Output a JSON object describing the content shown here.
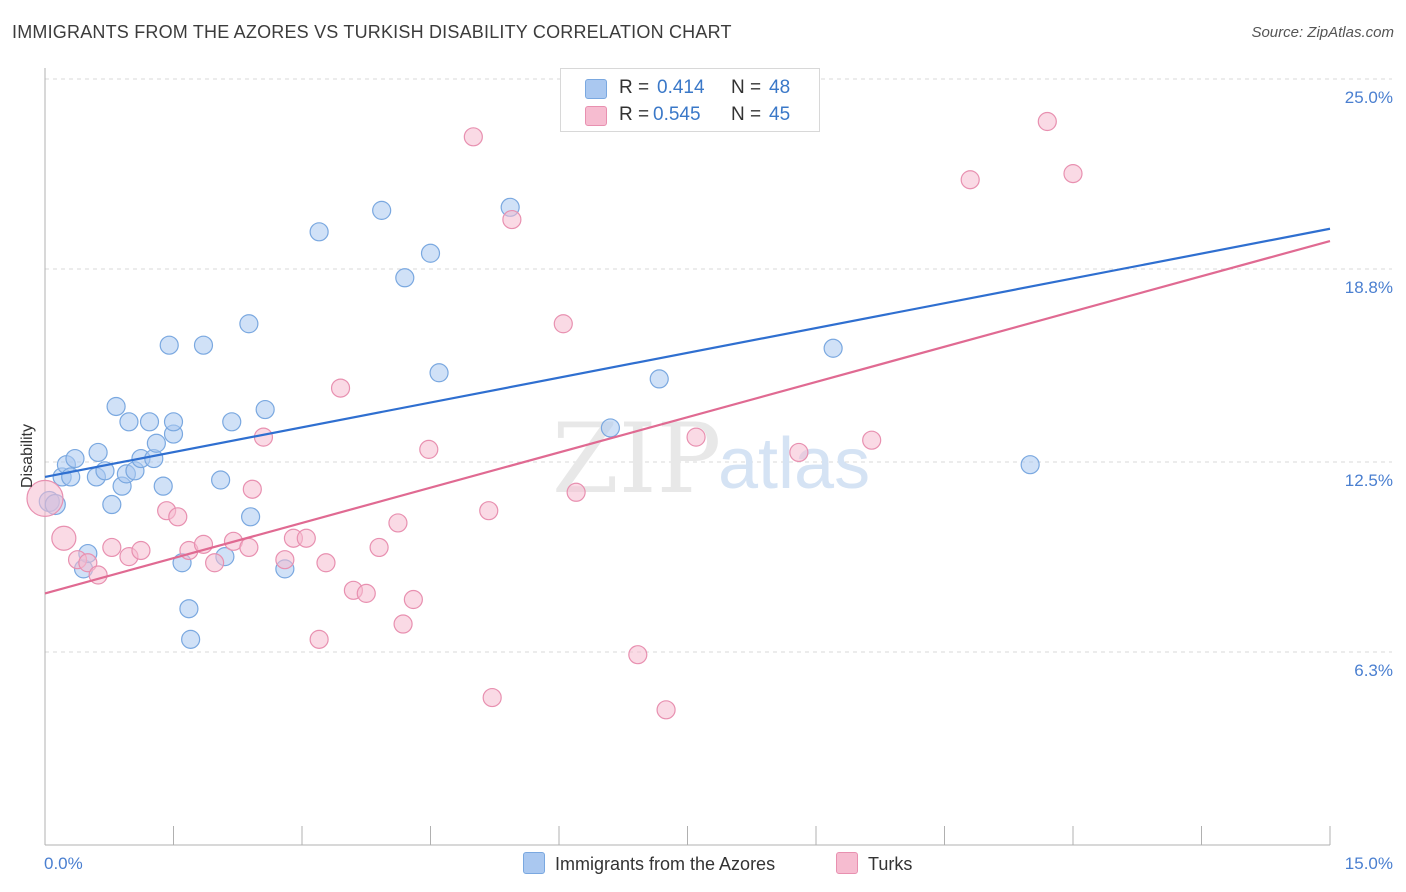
{
  "header": {
    "title": "IMMIGRANTS FROM THE AZORES VS TURKISH DISABILITY CORRELATION CHART",
    "source": "Source: ZipAtlas.com"
  },
  "watermark": {
    "zip": "ZIP",
    "atlas": "atlas"
  },
  "legend": {
    "rows": [
      {
        "r_label": "R =",
        "r_value": "0.414",
        "n_label": "N =",
        "n_value": "48",
        "color": "#aac8f0",
        "border": "#7aa8e0"
      },
      {
        "r_label": "R =",
        "r_value": "0.545",
        "n_label": "N =",
        "n_value": "45",
        "color": "#f6bcd0",
        "border": "#e890b0"
      }
    ]
  },
  "bottom_legend": {
    "series1": "Immigrants from the Azores",
    "series2": "Turks"
  },
  "colors": {
    "blue_fill": "#aac8f0",
    "blue_stroke": "#7aa8e0",
    "blue_line": "#2f6fd0",
    "pink_fill": "#f6bcd0",
    "pink_stroke": "#e890b0",
    "pink_line": "#e06a92",
    "tick_label": "#4a7fd0",
    "grid": "#d8d8d8"
  },
  "chart_data": {
    "type": "scatter",
    "title": "IMMIGRANTS FROM THE AZORES VS TURKISH DISABILITY CORRELATION CHART",
    "xlabel": "",
    "ylabel": "Disability",
    "xlim": [
      0,
      15
    ],
    "ylim": [
      0,
      26
    ],
    "x_tick_labels": [
      "0.0%",
      "15.0%"
    ],
    "y_ticks": [
      6.3,
      12.5,
      18.8,
      25.0
    ],
    "y_tick_labels": [
      "6.3%",
      "12.5%",
      "18.8%",
      "25.0%"
    ],
    "grid": "horizontal dashed",
    "legend_position": "top-center",
    "series": [
      {
        "name": "Immigrants from the Azores",
        "trend": {
          "x0": 0,
          "y0": 12.6,
          "x1": 15,
          "y1": 20.7
        },
        "points": [
          [
            0.05,
            11.8,
            10
          ],
          [
            0.12,
            11.7,
            10
          ],
          [
            0.2,
            12.6,
            9
          ],
          [
            0.25,
            13.0,
            9
          ],
          [
            0.3,
            12.6,
            9
          ],
          [
            0.35,
            13.2,
            9
          ],
          [
            0.45,
            9.6,
            9
          ],
          [
            0.5,
            10.1,
            9
          ],
          [
            0.6,
            12.6,
            9
          ],
          [
            0.62,
            13.4,
            9
          ],
          [
            0.7,
            12.8,
            9
          ],
          [
            0.78,
            11.7,
            9
          ],
          [
            0.83,
            14.9,
            9
          ],
          [
            0.9,
            12.3,
            9
          ],
          [
            0.95,
            12.7,
            9
          ],
          [
            0.98,
            14.4,
            9
          ],
          [
            1.05,
            12.8,
            9
          ],
          [
            1.12,
            13.2,
            9
          ],
          [
            1.22,
            14.4,
            9
          ],
          [
            1.27,
            13.2,
            9
          ],
          [
            1.3,
            13.7,
            9
          ],
          [
            1.38,
            12.3,
            9
          ],
          [
            1.45,
            16.9,
            9
          ],
          [
            1.5,
            14.0,
            9
          ],
          [
            1.5,
            14.4,
            9
          ],
          [
            1.6,
            9.8,
            9
          ],
          [
            1.68,
            8.3,
            9
          ],
          [
            1.7,
            7.3,
            9
          ],
          [
            1.85,
            16.9,
            9
          ],
          [
            2.05,
            12.5,
            9
          ],
          [
            2.1,
            10.0,
            9
          ],
          [
            2.18,
            14.4,
            9
          ],
          [
            2.38,
            17.6,
            9
          ],
          [
            2.4,
            11.3,
            9
          ],
          [
            2.57,
            14.8,
            9
          ],
          [
            2.8,
            9.6,
            9
          ],
          [
            3.2,
            20.6,
            9
          ],
          [
            3.93,
            21.3,
            9
          ],
          [
            4.2,
            19.1,
            9
          ],
          [
            4.5,
            19.9,
            9
          ],
          [
            4.6,
            16.0,
            9
          ],
          [
            5.43,
            21.4,
            9
          ],
          [
            7.17,
            15.8,
            9
          ],
          [
            6.6,
            14.2,
            9
          ],
          [
            9.2,
            16.8,
            9
          ],
          [
            11.5,
            13.0,
            9
          ]
        ]
      },
      {
        "name": "Turks",
        "trend": {
          "x0": 0,
          "y0": 8.8,
          "x1": 15,
          "y1": 20.3
        },
        "points": [
          [
            0.0,
            11.9,
            18
          ],
          [
            0.22,
            10.6,
            12
          ],
          [
            0.38,
            9.9,
            9
          ],
          [
            0.5,
            9.8,
            9
          ],
          [
            0.62,
            9.4,
            9
          ],
          [
            0.78,
            10.3,
            9
          ],
          [
            0.98,
            10.0,
            9
          ],
          [
            1.12,
            10.2,
            9
          ],
          [
            1.42,
            11.5,
            9
          ],
          [
            1.55,
            11.3,
            9
          ],
          [
            1.68,
            10.2,
            9
          ],
          [
            1.85,
            10.4,
            9
          ],
          [
            1.98,
            9.8,
            9
          ],
          [
            2.2,
            10.5,
            9
          ],
          [
            2.38,
            10.3,
            9
          ],
          [
            2.42,
            12.2,
            9
          ],
          [
            2.55,
            13.9,
            9
          ],
          [
            2.8,
            9.9,
            9
          ],
          [
            2.9,
            10.6,
            9
          ],
          [
            3.05,
            10.6,
            9
          ],
          [
            3.2,
            7.3,
            9
          ],
          [
            3.28,
            9.8,
            9
          ],
          [
            3.45,
            15.5,
            9
          ],
          [
            3.6,
            8.9,
            9
          ],
          [
            3.75,
            8.8,
            9
          ],
          [
            3.9,
            10.3,
            9
          ],
          [
            4.12,
            11.1,
            9
          ],
          [
            4.18,
            7.8,
            9
          ],
          [
            4.3,
            8.6,
            9
          ],
          [
            4.48,
            13.5,
            9
          ],
          [
            5.0,
            23.7,
            9
          ],
          [
            5.18,
            11.5,
            9
          ],
          [
            5.22,
            5.4,
            9
          ],
          [
            5.45,
            21.0,
            9
          ],
          [
            6.05,
            17.6,
            9
          ],
          [
            6.2,
            12.1,
            9
          ],
          [
            6.92,
            6.8,
            9
          ],
          [
            7.25,
            5.0,
            9
          ],
          [
            7.6,
            13.9,
            9
          ],
          [
            8.8,
            13.4,
            9
          ],
          [
            9.65,
            13.8,
            9
          ],
          [
            10.8,
            22.3,
            9
          ],
          [
            11.7,
            24.2,
            9
          ],
          [
            12.0,
            22.5,
            9
          ]
        ]
      }
    ]
  }
}
